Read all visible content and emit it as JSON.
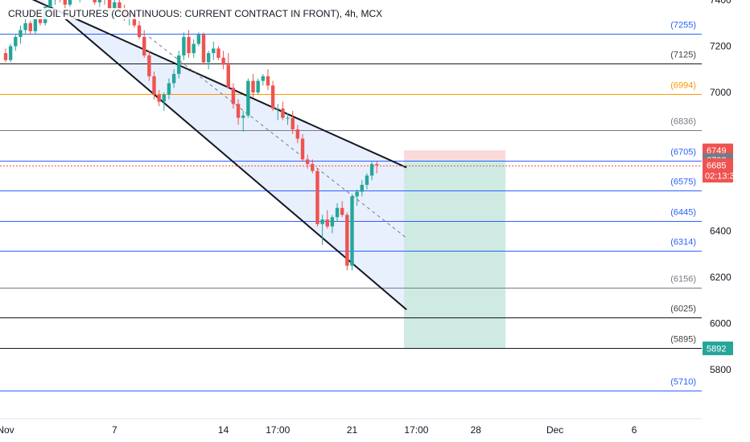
{
  "header": {
    "title": "CRUDE OIL FUTURES (CONTINUOUS: CURRENT CONTRACT IN FRONT), 4h, MCX"
  },
  "colors": {
    "up": "#26a69a",
    "down": "#ef5350",
    "blue": "#2962ff",
    "black": "#131722",
    "gray": "#787b86",
    "orange": "#ff9800",
    "channel_fill": "#d6e2fb",
    "target_fill": "#cfe9e3",
    "stop_fill": "#fbd9d8"
  },
  "chart_data": {
    "type": "candlestick",
    "title": "CRUDE OIL FUTURES (CONTINUOUS: CURRENT CONTRACT IN FRONT), 4h, MCX",
    "y_ticks": [
      7400,
      7200,
      7000,
      6800,
      6600,
      6400,
      6200,
      6000,
      5800
    ],
    "y_tick_labels": [
      "7400",
      "7200",
      "7000",
      "",
      "",
      "6400",
      "6200",
      "6000",
      "5800"
    ],
    "x_ticks": [
      {
        "label": "Nov",
        "index": 0
      },
      {
        "label": "7",
        "index": 22
      },
      {
        "label": "14",
        "index": 44
      },
      {
        "label": "17:00",
        "index": 55
      },
      {
        "label": "21",
        "index": 70
      },
      {
        "label": "17:00",
        "index": 83
      },
      {
        "label": "28",
        "index": 95
      },
      {
        "label": "Dec",
        "index": 111
      },
      {
        "label": "6",
        "index": 127
      }
    ],
    "levels": [
      {
        "value": 7255,
        "label": "(7255)",
        "style": "blue"
      },
      {
        "value": 7125,
        "label": "(7125)",
        "style": "black"
      },
      {
        "value": 6994,
        "label": "(6994)",
        "style": "orange"
      },
      {
        "value": 6836,
        "label": "(6836)",
        "style": "gray"
      },
      {
        "value": 6705,
        "label": "(6705)",
        "style": "blue"
      },
      {
        "value": 6575,
        "label": "(6575)",
        "style": "blue"
      },
      {
        "value": 6445,
        "label": "(6445)",
        "style": "blue"
      },
      {
        "value": 6314,
        "label": "(6314)",
        "style": "blue"
      },
      {
        "value": 6156,
        "label": "(6156)",
        "style": "gray"
      },
      {
        "value": 6025,
        "label": "(6025)",
        "style": "black"
      },
      {
        "value": 5895,
        "label": "(5895)",
        "style": "black"
      },
      {
        "value": 5710,
        "label": "(5710)",
        "style": "blue"
      }
    ],
    "price_tags": [
      {
        "text": "6749",
        "value": 6749,
        "color": "#ef5350"
      },
      {
        "text": "6708",
        "value": 6708,
        "color": "#787b86"
      },
      {
        "text": "6685",
        "value": 6685,
        "color": "#ef5350",
        "sub": "02:13:38"
      },
      {
        "text": "5892",
        "value": 5892,
        "color": "#26a69a"
      }
    ],
    "current_price": 6685,
    "channel": {
      "upper": [
        [
          0,
          7455
        ],
        [
          81,
          6675
        ]
      ],
      "lower": [
        [
          12,
          7320
        ],
        [
          81,
          6060
        ]
      ],
      "mid_from": [
        [
          29,
          7240
        ],
        [
          81,
          6370
        ]
      ]
    },
    "position": {
      "start_index": 80.5,
      "end_index": 101,
      "entry": 6708,
      "stop": 6749,
      "target": 5892
    },
    "ohlc": [
      [
        7170,
        7190,
        7130,
        7140
      ],
      [
        7140,
        7210,
        7130,
        7200
      ],
      [
        7200,
        7250,
        7180,
        7240
      ],
      [
        7240,
        7290,
        7210,
        7270
      ],
      [
        7270,
        7320,
        7250,
        7300
      ],
      [
        7300,
        7310,
        7250,
        7265
      ],
      [
        7265,
        7330,
        7250,
        7320
      ],
      [
        7320,
        7360,
        7290,
        7300
      ],
      [
        7300,
        7380,
        7290,
        7370
      ],
      [
        7370,
        7420,
        7350,
        7400
      ],
      [
        7400,
        7440,
        7380,
        7420
      ],
      [
        7420,
        7450,
        7390,
        7400
      ],
      [
        7400,
        7430,
        7360,
        7380
      ],
      [
        7380,
        7440,
        7370,
        7430
      ],
      [
        7430,
        7460,
        7400,
        7410
      ],
      [
        7410,
        7450,
        7390,
        7440
      ],
      [
        7440,
        7470,
        7420,
        7450
      ],
      [
        7450,
        7460,
        7400,
        7420
      ],
      [
        7420,
        7450,
        7380,
        7390
      ],
      [
        7390,
        7430,
        7370,
        7420
      ],
      [
        7420,
        7440,
        7380,
        7400
      ],
      [
        7400,
        7420,
        7350,
        7360
      ],
      [
        7360,
        7400,
        7330,
        7390
      ],
      [
        7390,
        7410,
        7340,
        7350
      ],
      [
        7350,
        7380,
        7310,
        7320
      ],
      [
        7320,
        7350,
        7290,
        7340
      ],
      [
        7340,
        7360,
        7280,
        7290
      ],
      [
        7290,
        7310,
        7230,
        7240
      ],
      [
        7240,
        7270,
        7150,
        7160
      ],
      [
        7160,
        7180,
        7050,
        7070
      ],
      [
        7070,
        7090,
        6970,
        6990
      ],
      [
        6990,
        7010,
        6940,
        6960
      ],
      [
        6960,
        7000,
        6920,
        6990
      ],
      [
        6990,
        7060,
        6970,
        7040
      ],
      [
        7040,
        7100,
        7020,
        7080
      ],
      [
        7080,
        7180,
        7060,
        7160
      ],
      [
        7160,
        7260,
        7140,
        7240
      ],
      [
        7240,
        7270,
        7150,
        7170
      ],
      [
        7170,
        7230,
        7150,
        7210
      ],
      [
        7210,
        7260,
        7200,
        7250
      ],
      [
        7250,
        7260,
        7120,
        7130
      ],
      [
        7130,
        7180,
        7100,
        7170
      ],
      [
        7170,
        7220,
        7140,
        7190
      ],
      [
        7190,
        7200,
        7140,
        7150
      ],
      [
        7150,
        7180,
        7100,
        7120
      ],
      [
        7120,
        7170,
        7020,
        7020
      ],
      [
        7020,
        7040,
        6930,
        6950
      ],
      [
        6950,
        6970,
        6860,
        6890
      ],
      [
        6890,
        6920,
        6830,
        6900
      ],
      [
        6900,
        7060,
        6890,
        7050
      ],
      [
        7050,
        7080,
        6980,
        7000
      ],
      [
        7000,
        7060,
        6990,
        7050
      ],
      [
        7050,
        7080,
        7030,
        7070
      ],
      [
        7070,
        7100,
        7010,
        7030
      ],
      [
        7030,
        7050,
        6920,
        6930
      ],
      [
        6930,
        6950,
        6880,
        6930
      ],
      [
        6930,
        6960,
        6880,
        6890
      ],
      [
        6890,
        6910,
        6860,
        6890
      ],
      [
        6890,
        6920,
        6820,
        6840
      ],
      [
        6840,
        6860,
        6780,
        6800
      ],
      [
        6800,
        6820,
        6700,
        6710
      ],
      [
        6710,
        6730,
        6670,
        6690
      ],
      [
        6690,
        6710,
        6650,
        6660
      ],
      [
        6660,
        6670,
        6420,
        6430
      ],
      [
        6430,
        6470,
        6340,
        6450
      ],
      [
        6450,
        6490,
        6410,
        6420
      ],
      [
        6420,
        6470,
        6390,
        6460
      ],
      [
        6460,
        6520,
        6440,
        6500
      ],
      [
        6500,
        6530,
        6460,
        6470
      ],
      [
        6470,
        6480,
        6230,
        6250
      ],
      [
        6250,
        6560,
        6230,
        6550
      ],
      [
        6550,
        6580,
        6510,
        6570
      ],
      [
        6570,
        6620,
        6550,
        6600
      ],
      [
        6600,
        6650,
        6580,
        6640
      ],
      [
        6640,
        6700,
        6620,
        6690
      ],
      [
        6690,
        6700,
        6650,
        6685
      ]
    ]
  }
}
